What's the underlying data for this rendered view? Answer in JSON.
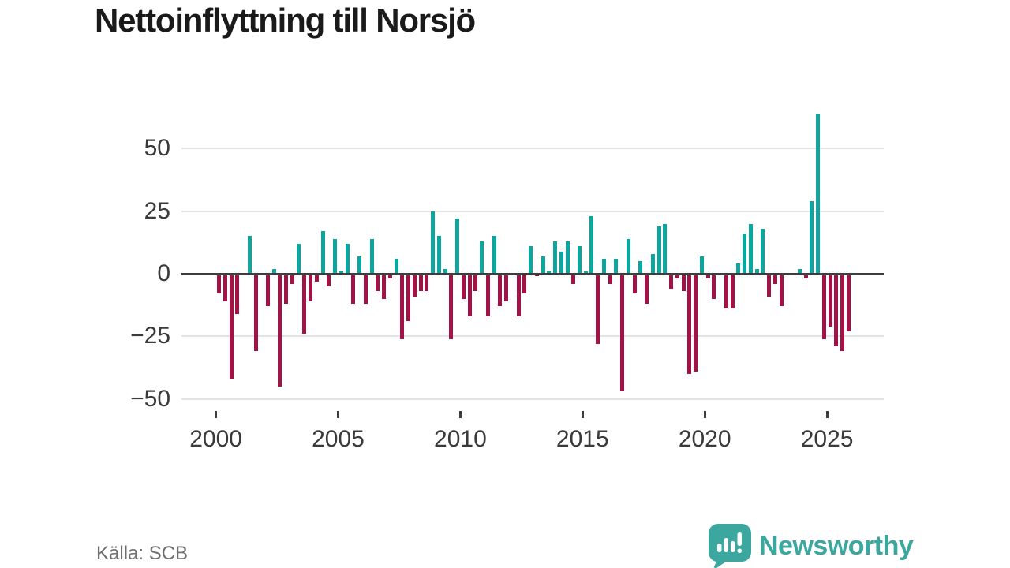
{
  "title": "Nettoinflyttning till Norsjö",
  "source": {
    "text": "Källa: SCB"
  },
  "brand": {
    "name": "Newsworthy",
    "icon": "bar-chart-speech-bubble-icon",
    "color": "#3ba79f"
  },
  "colors": {
    "positive_bar": "#0da69f",
    "negative_bar": "#a11247",
    "zero_axis": "#3d3d3d",
    "gridline": "#e4e4e4",
    "tick_label": "#3a3a3a",
    "title_text": "#1a1a1a",
    "source_text": "#6f6f6f"
  },
  "chart_data": {
    "type": "bar",
    "title": "Nettoinflyttning till Norsjö",
    "xlabel": "",
    "ylabel": "",
    "x_start": "2000-Q1",
    "x_frequency": "quarterly",
    "values": [
      -8,
      -11,
      -42,
      -16,
      0,
      15,
      -31,
      0,
      -13,
      2,
      -45,
      -12,
      -4,
      12,
      -24,
      -11,
      -3,
      17,
      -5,
      14,
      1,
      12,
      -12,
      7,
      -12,
      14,
      -7,
      -10,
      -2,
      6,
      -26,
      -19,
      -9,
      -7,
      -7,
      25,
      15,
      2,
      -26,
      22,
      -10,
      -17,
      -7,
      13,
      -17,
      15,
      -13,
      -11,
      0,
      -17,
      -8,
      11,
      -1,
      7,
      1,
      13,
      9,
      13,
      -4,
      11,
      1,
      23,
      -28,
      6,
      -4,
      6,
      -47,
      14,
      -8,
      5,
      -12,
      8,
      19,
      20,
      -6,
      -2,
      -7,
      -40,
      -39,
      7,
      -2,
      -10,
      0,
      -14,
      -14,
      4,
      16,
      20,
      2,
      18,
      -9,
      -4,
      -13,
      0,
      0,
      2,
      -2,
      29,
      64,
      -26,
      -21,
      -29,
      -31,
      -23
    ],
    "y_ticks": [
      50,
      25,
      0,
      -25,
      -50
    ],
    "y_tick_labels": [
      "50",
      "25",
      "0",
      "−25",
      "−50"
    ],
    "x_ticks": [
      2000,
      2005,
      2010,
      2015,
      2020,
      2025
    ],
    "x_tick_labels": [
      "2000",
      "2005",
      "2010",
      "2015",
      "2020",
      "2025"
    ],
    "ylim": [
      -50,
      66
    ],
    "grid": "horizontal",
    "legend": "none"
  }
}
